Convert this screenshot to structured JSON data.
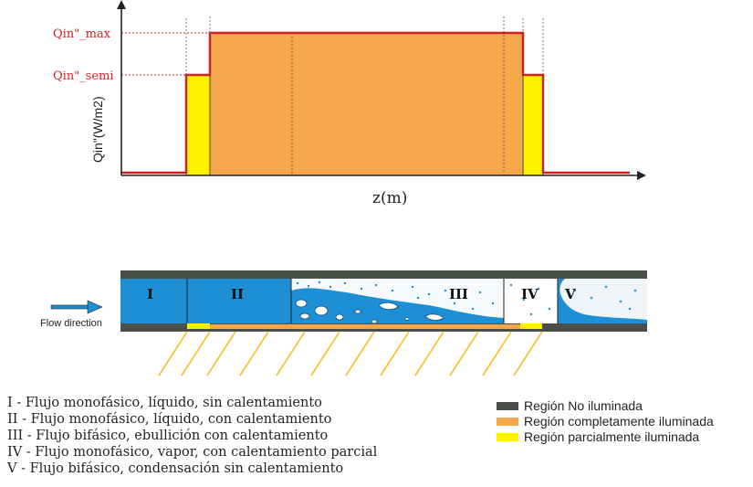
{
  "chart": {
    "y_axis_label": "Qin\"(W/m2)",
    "x_axis_label": "z(m)",
    "level_max_label": "Qin\"_max",
    "level_semi_label": "Qin\"_semi"
  },
  "tube": {
    "regions": [
      "I",
      "II",
      "III",
      "IV",
      "V"
    ],
    "flow_label": "Flow direction"
  },
  "regions_legend": [
    "I - Flujo monofásico, líquido, sin calentamiento",
    "II - Flujo monofásico, líquido, con calentamiento",
    "III - Flujo bifásico, ebullición con calentamiento",
    "IV - Flujo monofásico, vapor, con calentamiento parcial",
    "V - Flujo bifásico, condensación sin calentamiento"
  ],
  "color_key": [
    {
      "label": "Región No iluminada",
      "color": "#4a4f4a"
    },
    {
      "label": "Región completamente iluminada",
      "color": "#f4a74a"
    },
    {
      "label": "Región parcialmente iluminada",
      "color": "#fff200"
    }
  ],
  "colors": {
    "liquid": "#1e8fd4",
    "full": "#f4a74a",
    "partial": "#fff200",
    "profile": "#d42020",
    "wall": "#4a4f4a"
  }
}
